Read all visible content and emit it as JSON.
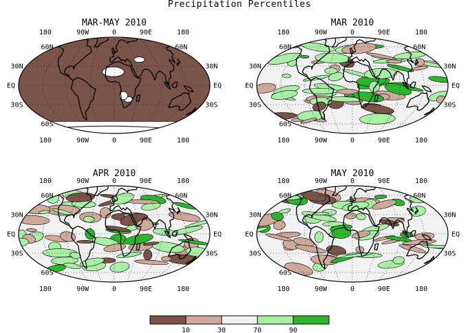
{
  "figure": {
    "title": "Precipitation Percentiles",
    "panels": [
      {
        "id": "mam",
        "title": "MAR-MAY 2010",
        "mode": "full",
        "lat_labels": [
          "60N",
          "30N",
          "EQ",
          "30S",
          "60S"
        ],
        "lon_labels_top": [
          "180",
          "90W",
          "0",
          "90E",
          "180"
        ],
        "lon_labels_bottom": [
          "180",
          "90W",
          "0",
          "90E",
          "180"
        ]
      },
      {
        "id": "mar",
        "title": "MAR 2010",
        "mode": "patchy",
        "seed": 11,
        "lat_labels": [
          "60N",
          "30N",
          "EQ",
          "30S",
          "60S"
        ],
        "lon_labels_top": [
          "180",
          "90W",
          "0",
          "90E",
          "180"
        ],
        "lon_labels_bottom": [
          "180",
          "90W",
          "0",
          "90E",
          "180"
        ]
      },
      {
        "id": "apr",
        "title": "APR 2010",
        "mode": "patchy",
        "seed": 29,
        "lat_labels": [
          "60N",
          "30N",
          "EQ",
          "30S",
          "60S"
        ],
        "lon_labels_top": [
          "180",
          "90W",
          "0",
          "90E",
          "180"
        ],
        "lon_labels_bottom": [
          "180",
          "90W",
          "0",
          "90E",
          "180"
        ]
      },
      {
        "id": "may",
        "title": "MAY 2010",
        "mode": "patchy",
        "seed": 47,
        "lat_labels": [
          "60N",
          "30N",
          "EQ",
          "30S",
          "60S"
        ],
        "lon_labels_top": [
          "180",
          "90W",
          "0",
          "90E",
          "180"
        ],
        "lon_labels_bottom": [
          "180",
          "90W",
          "0",
          "90E",
          "180"
        ]
      }
    ]
  },
  "colorbar": {
    "colors": [
      "#7b5449",
      "#cfa99c",
      "#f2f2f2",
      "#a9f0a6",
      "#2db52d"
    ],
    "ticks": [
      "10",
      "30",
      "70",
      "90"
    ]
  },
  "colors": {
    "brown_dark": "#7b5449",
    "brown_light": "#cfa99c",
    "neutral": "#f2f2f2",
    "green_light": "#a9f0a6",
    "green_dark": "#2db52d"
  }
}
